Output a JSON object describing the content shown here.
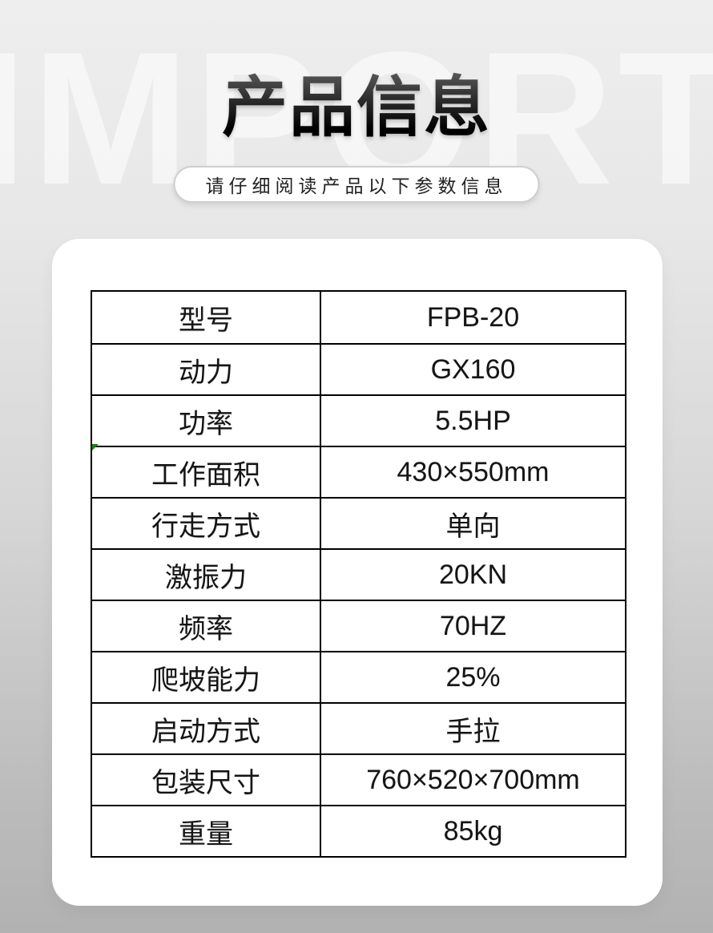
{
  "page": {
    "watermark": "IMPORT",
    "title": "产品信息",
    "subtitle": "请仔细阅读产品以下参数信息"
  },
  "colors": {
    "background_top": "#eeeeee",
    "background_bottom": "#b2b2b2",
    "card_background": "#ffffff",
    "table_border": "#000000",
    "title_color": "#000000",
    "corner_marker_green": "#128712"
  },
  "icons": {
    "corner_marker": "excel-green-corner-triangle"
  },
  "table": {
    "rows": [
      {
        "label": "型号",
        "value": "FPB-20"
      },
      {
        "label": "动力",
        "value": "GX160"
      },
      {
        "label": "功率",
        "value": "5.5HP"
      },
      {
        "label": "工作面积",
        "value": "430×550mm"
      },
      {
        "label": "行走方式",
        "value": "单向"
      },
      {
        "label": "激振力",
        "value": "20KN"
      },
      {
        "label": "频率",
        "value": "70HZ"
      },
      {
        "label": "爬坡能力",
        "value": "25%"
      },
      {
        "label": "启动方式",
        "value": "手拉"
      },
      {
        "label": "包装尺寸",
        "value": "760×520×700mm"
      },
      {
        "label": "重量",
        "value": "85kg"
      }
    ]
  }
}
